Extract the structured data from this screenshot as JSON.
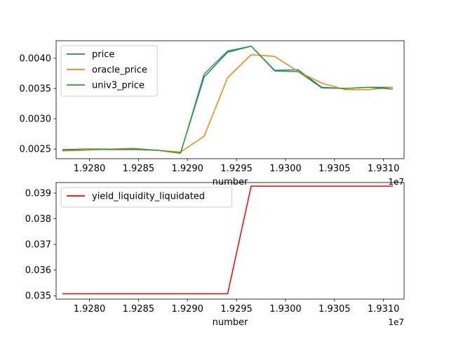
{
  "chart_data": [
    {
      "type": "line",
      "xlabel": "number",
      "ylabel": "",
      "x_offset_label": "1e7",
      "xlim": [
        19276600,
        19312100
      ],
      "ylim": [
        0.00234,
        0.00429
      ],
      "x_ticks": [
        19278000,
        19280000,
        19282000,
        19284000,
        19286000,
        19288000,
        19290000,
        19292000,
        19294000,
        19296000,
        19298000,
        19300000,
        19302000,
        19304000,
        19306000,
        19308000,
        19310000
      ],
      "x_tick_labels": [
        "1.9280",
        "1.9285",
        "1.9290",
        "1.9295",
        "1.9300",
        "1.9305",
        "1.9310"
      ],
      "x_tick_values": [
        19280000,
        19285000,
        19290000,
        19295000,
        19300000,
        19305000,
        19310000
      ],
      "y_tick_values": [
        0.0025,
        0.003,
        0.0035,
        0.004
      ],
      "y_tick_labels": [
        "0.0025",
        "0.0030",
        "0.0035",
        "0.0040"
      ],
      "legend_position": "upper-left",
      "series": [
        {
          "name": "price",
          "color": "#1f77b4",
          "x": [
            19277300,
            19279700,
            19282100,
            19284500,
            19286900,
            19289300,
            19291700,
            19294100,
            19296500,
            19298900,
            19301300,
            19303700,
            19306100,
            19308500,
            19310900
          ],
          "y": [
            0.00249,
            0.0025,
            0.0025,
            0.00251,
            0.00248,
            0.00244,
            0.00369,
            0.0041,
            0.0042,
            0.0038,
            0.00381,
            0.00352,
            0.0035,
            0.00352,
            0.00352
          ]
        },
        {
          "name": "oracle_price",
          "color": "#ff7f0e",
          "x": [
            19277300,
            19279700,
            19282100,
            19284500,
            19286900,
            19289300,
            19291700,
            19294100,
            19296500,
            19298900,
            19301300,
            19303700,
            19306100,
            19308500,
            19310900
          ],
          "y": [
            0.00247,
            0.00248,
            0.0025,
            0.0025,
            0.00248,
            0.00245,
            0.00271,
            0.00368,
            0.00406,
            0.00403,
            0.00378,
            0.00359,
            0.00348,
            0.00348,
            0.00352
          ]
        },
        {
          "name": "univ3_price",
          "color": "#2ca02c",
          "x": [
            19277300,
            19279700,
            19282100,
            19284500,
            19286900,
            19289300,
            19291700,
            19294100,
            19296500,
            19298900,
            19301300,
            19303700,
            19306100,
            19308500,
            19310900
          ],
          "y": [
            0.00248,
            0.0025,
            0.00249,
            0.00249,
            0.00248,
            0.00243,
            0.00374,
            0.00412,
            0.0042,
            0.00379,
            0.00378,
            0.00351,
            0.0035,
            0.00352,
            0.00349
          ]
        }
      ]
    },
    {
      "type": "line",
      "xlabel": "number",
      "ylabel": "",
      "x_offset_label": "1e7",
      "xlim": [
        19276600,
        19312100
      ],
      "ylim": [
        0.03487,
        0.03941
      ],
      "x_tick_values": [
        19280000,
        19285000,
        19290000,
        19295000,
        19300000,
        19305000,
        19310000
      ],
      "x_tick_labels": [
        "1.9280",
        "1.9285",
        "1.9290",
        "1.9295",
        "1.9300",
        "1.9305",
        "1.9310"
      ],
      "y_tick_values": [
        0.035,
        0.036,
        0.037,
        0.038,
        0.039
      ],
      "y_tick_labels": [
        "0.035",
        "0.036",
        "0.037",
        "0.038",
        "0.039"
      ],
      "legend_position": "upper-left",
      "series": [
        {
          "name": "yield_liquidity_liquidated",
          "color": "#ff0000",
          "x": [
            19277300,
            19279700,
            19282100,
            19284500,
            19286900,
            19289300,
            19291700,
            19294100,
            19296500,
            19298900,
            19301300,
            19303700,
            19306100,
            19308500,
            19310900
          ],
          "y": [
            0.03508,
            0.03508,
            0.03508,
            0.03508,
            0.03508,
            0.03508,
            0.03508,
            0.03508,
            0.03927,
            0.03927,
            0.03927,
            0.03927,
            0.03927,
            0.03927,
            0.03927
          ]
        }
      ]
    }
  ]
}
